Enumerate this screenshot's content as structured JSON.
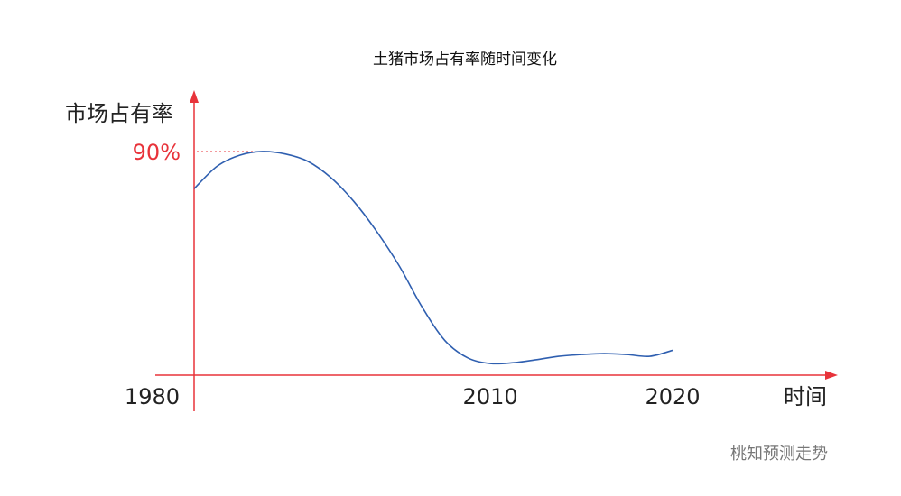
{
  "chart_data": {
    "type": "line",
    "title": "土猪市场占有率随时间变化",
    "y_label": "市场占有率",
    "x_label": "时间",
    "watermark": "桃知预测走势",
    "categories": [
      "1980",
      null,
      null,
      null,
      null,
      null,
      null,
      null,
      null,
      null,
      null,
      null,
      null,
      "2010",
      null,
      null,
      null,
      null,
      null,
      null,
      null,
      "2020"
    ],
    "series": [
      {
        "name": null,
        "color": "#2f5fb0",
        "values": [
          75,
          84,
          88.5,
          90,
          89,
          86,
          79.5,
          70,
          58,
          44,
          27.5,
          14,
          7,
          4.7,
          5,
          6.2,
          7.6,
          8.3,
          8.7,
          8.3,
          7.6,
          10
        ]
      }
    ],
    "ylim": [
      0,
      100
    ],
    "yticks": [
      {
        "value": 90,
        "label": "90%"
      }
    ],
    "axis_color": "#e8333a"
  }
}
